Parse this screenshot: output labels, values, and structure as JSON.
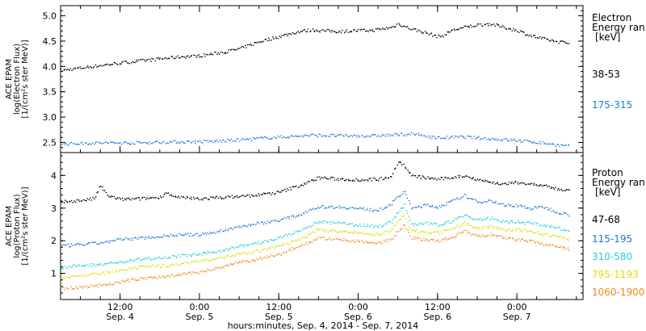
{
  "chart_data": {
    "type": "scatter",
    "x_axis": {
      "label": "hours:minutes, Sep.  4, 2014 - Sep.  7, 2014",
      "range_hours": [
        3,
        82
      ],
      "ticks": [
        {
          "hour": 12,
          "time": "12:00",
          "date": "Sep. 4"
        },
        {
          "hour": 24,
          "time": "0:00",
          "date": "Sep. 5"
        },
        {
          "hour": 36,
          "time": "12:00",
          "date": "Sep. 5"
        },
        {
          "hour": 48,
          "time": "0:00",
          "date": "Sep. 6"
        },
        {
          "hour": 60,
          "time": "12:00",
          "date": "Sep. 6"
        },
        {
          "hour": 72,
          "time": "0:00",
          "date": "Sep. 7"
        }
      ]
    },
    "panels": [
      {
        "id": "electron",
        "ylabel": [
          "ACE EPAM",
          "log(Electron Flux)",
          "[1/(cm²s ster MeV)]"
        ],
        "ylim": [
          2.3,
          5.2
        ],
        "yticks": [
          "2.5",
          "3.0",
          "3.5",
          "4.0",
          "4.5",
          "5.0"
        ],
        "legend_title": [
          "Electron",
          "Energy ran",
          "[keV]"
        ],
        "series": [
          {
            "name": "38-53",
            "color": "#000000",
            "points": [
              [
                3,
                3.93
              ],
              [
                6,
                3.98
              ],
              [
                9,
                4.03
              ],
              [
                12,
                4.08
              ],
              [
                15,
                4.12
              ],
              [
                18,
                4.16
              ],
              [
                21,
                4.2
              ],
              [
                24,
                4.22
              ],
              [
                26,
                4.26
              ],
              [
                28,
                4.3
              ],
              [
                30,
                4.36
              ],
              [
                33,
                4.5
              ],
              [
                36,
                4.6
              ],
              [
                39,
                4.7
              ],
              [
                41,
                4.73
              ],
              [
                42,
                4.72
              ],
              [
                45,
                4.7
              ],
              [
                48,
                4.72
              ],
              [
                50,
                4.72
              ],
              [
                53,
                4.78
              ],
              [
                54,
                4.85
              ],
              [
                56,
                4.75
              ],
              [
                58,
                4.68
              ],
              [
                60,
                4.6
              ],
              [
                61,
                4.63
              ],
              [
                62,
                4.72
              ],
              [
                64,
                4.78
              ],
              [
                66,
                4.83
              ],
              [
                68,
                4.85
              ],
              [
                70,
                4.78
              ],
              [
                72,
                4.72
              ],
              [
                74,
                4.62
              ],
              [
                76,
                4.55
              ],
              [
                78,
                4.5
              ],
              [
                80,
                4.47
              ]
            ]
          },
          {
            "name": "175-315",
            "color": "#1e78d8",
            "points": [
              [
                3,
                2.48
              ],
              [
                8,
                2.5
              ],
              [
                14,
                2.5
              ],
              [
                20,
                2.52
              ],
              [
                26,
                2.53
              ],
              [
                30,
                2.56
              ],
              [
                34,
                2.6
              ],
              [
                38,
                2.63
              ],
              [
                41,
                2.65
              ],
              [
                42,
                2.65
              ],
              [
                46,
                2.64
              ],
              [
                50,
                2.64
              ],
              [
                54,
                2.66
              ],
              [
                56,
                2.68
              ],
              [
                60,
                2.6
              ],
              [
                64,
                2.62
              ],
              [
                68,
                2.58
              ],
              [
                72,
                2.55
              ],
              [
                76,
                2.5
              ],
              [
                78,
                2.46
              ],
              [
                80,
                2.43
              ]
            ]
          }
        ]
      },
      {
        "id": "proton",
        "ylabel": [
          "ACE EPAM",
          "log(Proton Flux)",
          "[1/(cm²s ster MeV)]"
        ],
        "ylim": [
          0.2,
          4.7
        ],
        "yticks": [
          "1",
          "2",
          "3",
          "4"
        ],
        "legend_title": [
          "Proton",
          "Energy ran",
          "[keV]"
        ],
        "series": [
          {
            "name": "47-68",
            "color": "#000000",
            "points": [
              [
                3,
                3.2
              ],
              [
                6,
                3.25
              ],
              [
                8,
                3.3
              ],
              [
                9,
                3.7
              ],
              [
                10,
                3.4
              ],
              [
                12,
                3.28
              ],
              [
                15,
                3.3
              ],
              [
                18,
                3.35
              ],
              [
                19,
                3.5
              ],
              [
                20,
                3.35
              ],
              [
                24,
                3.3
              ],
              [
                28,
                3.35
              ],
              [
                32,
                3.4
              ],
              [
                36,
                3.5
              ],
              [
                39,
                3.7
              ],
              [
                41,
                3.85
              ],
              [
                42,
                3.95
              ],
              [
                45,
                3.9
              ],
              [
                48,
                3.88
              ],
              [
                51,
                3.9
              ],
              [
                53,
                4.0
              ],
              [
                54,
                4.45
              ],
              [
                55,
                4.3
              ],
              [
                56,
                4.0
              ],
              [
                58,
                3.95
              ],
              [
                60,
                3.9
              ],
              [
                62,
                3.95
              ],
              [
                64,
                4.0
              ],
              [
                66,
                3.9
              ],
              [
                68,
                3.8
              ],
              [
                70,
                3.75
              ],
              [
                72,
                3.8
              ],
              [
                74,
                3.75
              ],
              [
                76,
                3.7
              ],
              [
                78,
                3.6
              ],
              [
                80,
                3.55
              ]
            ]
          },
          {
            "name": "115-195",
            "color": "#1e78d8",
            "points": [
              [
                3,
                1.85
              ],
              [
                6,
                1.9
              ],
              [
                9,
                1.95
              ],
              [
                12,
                2.05
              ],
              [
                15,
                2.1
              ],
              [
                18,
                2.15
              ],
              [
                21,
                2.2
              ],
              [
                24,
                2.2
              ],
              [
                27,
                2.3
              ],
              [
                30,
                2.45
              ],
              [
                33,
                2.55
              ],
              [
                36,
                2.65
              ],
              [
                39,
                2.8
              ],
              [
                41,
                3.0
              ],
              [
                42,
                3.05
              ],
              [
                45,
                3.05
              ],
              [
                48,
                3.0
              ],
              [
                51,
                2.95
              ],
              [
                53,
                3.15
              ],
              [
                54,
                3.35
              ],
              [
                55,
                3.55
              ],
              [
                56,
                3.0
              ],
              [
                58,
                3.1
              ],
              [
                60,
                3.05
              ],
              [
                62,
                3.2
              ],
              [
                64,
                3.4
              ],
              [
                66,
                3.2
              ],
              [
                68,
                3.25
              ],
              [
                70,
                3.1
              ],
              [
                72,
                3.1
              ],
              [
                74,
                3.0
              ],
              [
                76,
                3.05
              ],
              [
                78,
                2.9
              ],
              [
                80,
                2.8
              ]
            ]
          },
          {
            "name": "310-580",
            "color": "#20d0d0",
            "points": [
              [
                3,
                1.2
              ],
              [
                6,
                1.25
              ],
              [
                9,
                1.3
              ],
              [
                12,
                1.35
              ],
              [
                15,
                1.45
              ],
              [
                18,
                1.5
              ],
              [
                21,
                1.55
              ],
              [
                24,
                1.6
              ],
              [
                27,
                1.7
              ],
              [
                30,
                1.85
              ],
              [
                33,
                1.95
              ],
              [
                36,
                2.1
              ],
              [
                39,
                2.3
              ],
              [
                41,
                2.5
              ],
              [
                42,
                2.6
              ],
              [
                45,
                2.55
              ],
              [
                48,
                2.5
              ],
              [
                51,
                2.45
              ],
              [
                53,
                2.6
              ],
              [
                54,
                2.9
              ],
              [
                55,
                3.1
              ],
              [
                56,
                2.5
              ],
              [
                58,
                2.55
              ],
              [
                60,
                2.5
              ],
              [
                62,
                2.6
              ],
              [
                64,
                2.8
              ],
              [
                66,
                2.65
              ],
              [
                68,
                2.7
              ],
              [
                70,
                2.6
              ],
              [
                72,
                2.6
              ],
              [
                74,
                2.55
              ],
              [
                76,
                2.5
              ],
              [
                78,
                2.4
              ],
              [
                80,
                2.3
              ]
            ]
          },
          {
            "name": "795-1193",
            "color": "#d8e000",
            "points": [
              [
                3,
                0.9
              ],
              [
                6,
                0.95
              ],
              [
                9,
                1.0
              ],
              [
                12,
                1.1
              ],
              [
                15,
                1.2
              ],
              [
                18,
                1.25
              ],
              [
                21,
                1.3
              ],
              [
                24,
                1.4
              ],
              [
                27,
                1.5
              ],
              [
                30,
                1.6
              ],
              [
                33,
                1.7
              ],
              [
                36,
                1.85
              ],
              [
                39,
                2.05
              ],
              [
                41,
                2.25
              ],
              [
                42,
                2.35
              ],
              [
                45,
                2.3
              ],
              [
                48,
                2.25
              ],
              [
                51,
                2.2
              ],
              [
                53,
                2.35
              ],
              [
                54,
                2.6
              ],
              [
                55,
                2.8
              ],
              [
                56,
                2.3
              ],
              [
                58,
                2.3
              ],
              [
                60,
                2.25
              ],
              [
                62,
                2.35
              ],
              [
                64,
                2.55
              ],
              [
                66,
                2.4
              ],
              [
                68,
                2.45
              ],
              [
                70,
                2.35
              ],
              [
                72,
                2.35
              ],
              [
                74,
                2.3
              ],
              [
                76,
                2.2
              ],
              [
                78,
                2.15
              ],
              [
                80,
                2.05
              ]
            ]
          },
          {
            "name": "1060-1900",
            "color": "#f08a1c",
            "points": [
              [
                3,
                0.55
              ],
              [
                6,
                0.6
              ],
              [
                9,
                0.65
              ],
              [
                12,
                0.75
              ],
              [
                15,
                0.85
              ],
              [
                18,
                0.9
              ],
              [
                21,
                1.0
              ],
              [
                24,
                1.05
              ],
              [
                27,
                1.2
              ],
              [
                30,
                1.35
              ],
              [
                33,
                1.45
              ],
              [
                36,
                1.6
              ],
              [
                39,
                1.85
              ],
              [
                41,
                2.0
              ],
              [
                42,
                2.1
              ],
              [
                45,
                2.05
              ],
              [
                48,
                2.0
              ],
              [
                51,
                1.95
              ],
              [
                53,
                2.05
              ],
              [
                54,
                2.3
              ],
              [
                55,
                2.5
              ],
              [
                56,
                2.1
              ],
              [
                58,
                2.05
              ],
              [
                60,
                2.0
              ],
              [
                62,
                2.1
              ],
              [
                64,
                2.3
              ],
              [
                66,
                2.15
              ],
              [
                68,
                2.2
              ],
              [
                70,
                2.1
              ],
              [
                72,
                2.05
              ],
              [
                74,
                2.0
              ],
              [
                76,
                1.9
              ],
              [
                78,
                1.85
              ],
              [
                80,
                1.75
              ]
            ]
          }
        ]
      }
    ]
  }
}
